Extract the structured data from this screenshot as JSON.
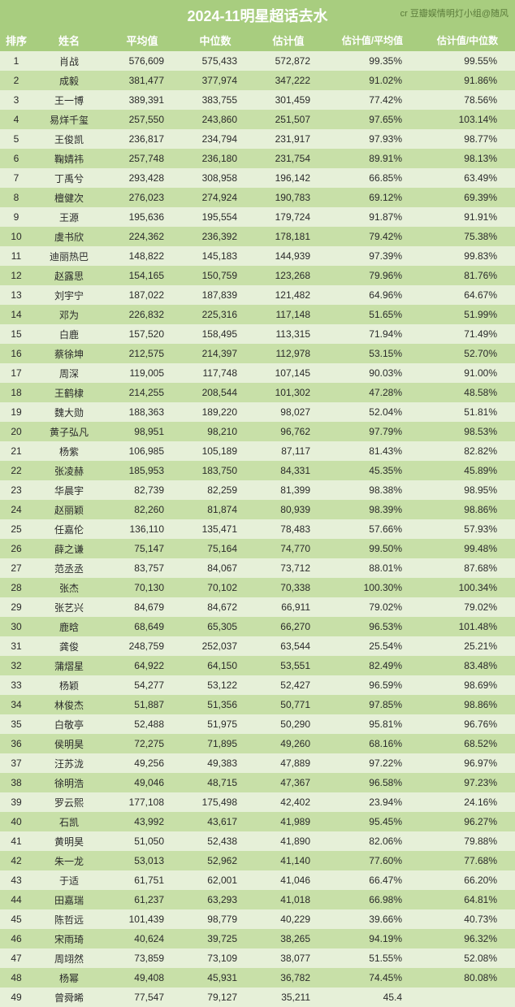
{
  "title": "2024-11明星超话去水",
  "credit": "cr 豆瓣娱情明灯小组@随风",
  "columns": [
    "排序",
    "姓名",
    "平均值",
    "中位数",
    "估计值",
    "估计值/平均值",
    "估计值/中位数"
  ],
  "rows": [
    {
      "rank": "1",
      "name": "肖战",
      "avg": "576,609",
      "med": "575,433",
      "est": "572,872",
      "r1": "99.35%",
      "r2": "99.55%"
    },
    {
      "rank": "2",
      "name": "成毅",
      "avg": "381,477",
      "med": "377,974",
      "est": "347,222",
      "r1": "91.02%",
      "r2": "91.86%"
    },
    {
      "rank": "3",
      "name": "王一博",
      "avg": "389,391",
      "med": "383,755",
      "est": "301,459",
      "r1": "77.42%",
      "r2": "78.56%"
    },
    {
      "rank": "4",
      "name": "易烊千玺",
      "avg": "257,550",
      "med": "243,860",
      "est": "251,507",
      "r1": "97.65%",
      "r2": "103.14%"
    },
    {
      "rank": "5",
      "name": "王俊凯",
      "avg": "236,817",
      "med": "234,794",
      "est": "231,917",
      "r1": "97.93%",
      "r2": "98.77%"
    },
    {
      "rank": "6",
      "name": "鞠婧祎",
      "avg": "257,748",
      "med": "236,180",
      "est": "231,754",
      "r1": "89.91%",
      "r2": "98.13%"
    },
    {
      "rank": "7",
      "name": "丁禹兮",
      "avg": "293,428",
      "med": "308,958",
      "est": "196,142",
      "r1": "66.85%",
      "r2": "63.49%"
    },
    {
      "rank": "8",
      "name": "檀健次",
      "avg": "276,023",
      "med": "274,924",
      "est": "190,783",
      "r1": "69.12%",
      "r2": "69.39%"
    },
    {
      "rank": "9",
      "name": "王源",
      "avg": "195,636",
      "med": "195,554",
      "est": "179,724",
      "r1": "91.87%",
      "r2": "91.91%"
    },
    {
      "rank": "10",
      "name": "虞书欣",
      "avg": "224,362",
      "med": "236,392",
      "est": "178,181",
      "r1": "79.42%",
      "r2": "75.38%"
    },
    {
      "rank": "11",
      "name": "迪丽热巴",
      "avg": "148,822",
      "med": "145,183",
      "est": "144,939",
      "r1": "97.39%",
      "r2": "99.83%"
    },
    {
      "rank": "12",
      "name": "赵露思",
      "avg": "154,165",
      "med": "150,759",
      "est": "123,268",
      "r1": "79.96%",
      "r2": "81.76%"
    },
    {
      "rank": "13",
      "name": "刘宇宁",
      "avg": "187,022",
      "med": "187,839",
      "est": "121,482",
      "r1": "64.96%",
      "r2": "64.67%"
    },
    {
      "rank": "14",
      "name": "邓为",
      "avg": "226,832",
      "med": "225,316",
      "est": "117,148",
      "r1": "51.65%",
      "r2": "51.99%"
    },
    {
      "rank": "15",
      "name": "白鹿",
      "avg": "157,520",
      "med": "158,495",
      "est": "113,315",
      "r1": "71.94%",
      "r2": "71.49%"
    },
    {
      "rank": "16",
      "name": "蔡徐坤",
      "avg": "212,575",
      "med": "214,397",
      "est": "112,978",
      "r1": "53.15%",
      "r2": "52.70%"
    },
    {
      "rank": "17",
      "name": "周深",
      "avg": "119,005",
      "med": "117,748",
      "est": "107,145",
      "r1": "90.03%",
      "r2": "91.00%"
    },
    {
      "rank": "18",
      "name": "王鹤棣",
      "avg": "214,255",
      "med": "208,544",
      "est": "101,302",
      "r1": "47.28%",
      "r2": "48.58%"
    },
    {
      "rank": "19",
      "name": "魏大勋",
      "avg": "188,363",
      "med": "189,220",
      "est": "98,027",
      "r1": "52.04%",
      "r2": "51.81%"
    },
    {
      "rank": "20",
      "name": "黄子弘凡",
      "avg": "98,951",
      "med": "98,210",
      "est": "96,762",
      "r1": "97.79%",
      "r2": "98.53%"
    },
    {
      "rank": "21",
      "name": "杨紫",
      "avg": "106,985",
      "med": "105,189",
      "est": "87,117",
      "r1": "81.43%",
      "r2": "82.82%"
    },
    {
      "rank": "22",
      "name": "张凌赫",
      "avg": "185,953",
      "med": "183,750",
      "est": "84,331",
      "r1": "45.35%",
      "r2": "45.89%"
    },
    {
      "rank": "23",
      "name": "华晨宇",
      "avg": "82,739",
      "med": "82,259",
      "est": "81,399",
      "r1": "98.38%",
      "r2": "98.95%"
    },
    {
      "rank": "24",
      "name": "赵丽颖",
      "avg": "82,260",
      "med": "81,874",
      "est": "80,939",
      "r1": "98.39%",
      "r2": "98.86%"
    },
    {
      "rank": "25",
      "name": "任嘉伦",
      "avg": "136,110",
      "med": "135,471",
      "est": "78,483",
      "r1": "57.66%",
      "r2": "57.93%"
    },
    {
      "rank": "26",
      "name": "薛之谦",
      "avg": "75,147",
      "med": "75,164",
      "est": "74,770",
      "r1": "99.50%",
      "r2": "99.48%"
    },
    {
      "rank": "27",
      "name": "范丞丞",
      "avg": "83,757",
      "med": "84,067",
      "est": "73,712",
      "r1": "88.01%",
      "r2": "87.68%"
    },
    {
      "rank": "28",
      "name": "张杰",
      "avg": "70,130",
      "med": "70,102",
      "est": "70,338",
      "r1": "100.30%",
      "r2": "100.34%"
    },
    {
      "rank": "29",
      "name": "张艺兴",
      "avg": "84,679",
      "med": "84,672",
      "est": "66,911",
      "r1": "79.02%",
      "r2": "79.02%"
    },
    {
      "rank": "30",
      "name": "鹿晗",
      "avg": "68,649",
      "med": "65,305",
      "est": "66,270",
      "r1": "96.53%",
      "r2": "101.48%"
    },
    {
      "rank": "31",
      "name": "龚俊",
      "avg": "248,759",
      "med": "252,037",
      "est": "63,544",
      "r1": "25.54%",
      "r2": "25.21%"
    },
    {
      "rank": "32",
      "name": "蒲熠星",
      "avg": "64,922",
      "med": "64,150",
      "est": "53,551",
      "r1": "82.49%",
      "r2": "83.48%"
    },
    {
      "rank": "33",
      "name": "杨颖",
      "avg": "54,277",
      "med": "53,122",
      "est": "52,427",
      "r1": "96.59%",
      "r2": "98.69%"
    },
    {
      "rank": "34",
      "name": "林俊杰",
      "avg": "51,887",
      "med": "51,356",
      "est": "50,771",
      "r1": "97.85%",
      "r2": "98.86%"
    },
    {
      "rank": "35",
      "name": "白敬亭",
      "avg": "52,488",
      "med": "51,975",
      "est": "50,290",
      "r1": "95.81%",
      "r2": "96.76%"
    },
    {
      "rank": "36",
      "name": "侯明昊",
      "avg": "72,275",
      "med": "71,895",
      "est": "49,260",
      "r1": "68.16%",
      "r2": "68.52%"
    },
    {
      "rank": "37",
      "name": "汪苏泷",
      "avg": "49,256",
      "med": "49,383",
      "est": "47,889",
      "r1": "97.22%",
      "r2": "96.97%"
    },
    {
      "rank": "38",
      "name": "徐明浩",
      "avg": "49,046",
      "med": "48,715",
      "est": "47,367",
      "r1": "96.58%",
      "r2": "97.23%"
    },
    {
      "rank": "39",
      "name": "罗云熙",
      "avg": "177,108",
      "med": "175,498",
      "est": "42,402",
      "r1": "23.94%",
      "r2": "24.16%"
    },
    {
      "rank": "40",
      "name": "石凯",
      "avg": "43,992",
      "med": "43,617",
      "est": "41,989",
      "r1": "95.45%",
      "r2": "96.27%"
    },
    {
      "rank": "41",
      "name": "黄明昊",
      "avg": "51,050",
      "med": "52,438",
      "est": "41,890",
      "r1": "82.06%",
      "r2": "79.88%"
    },
    {
      "rank": "42",
      "name": "朱一龙",
      "avg": "53,013",
      "med": "52,962",
      "est": "41,140",
      "r1": "77.60%",
      "r2": "77.68%"
    },
    {
      "rank": "43",
      "name": "于适",
      "avg": "61,751",
      "med": "62,001",
      "est": "41,046",
      "r1": "66.47%",
      "r2": "66.20%"
    },
    {
      "rank": "44",
      "name": "田嘉瑞",
      "avg": "61,237",
      "med": "63,293",
      "est": "41,018",
      "r1": "66.98%",
      "r2": "64.81%"
    },
    {
      "rank": "45",
      "name": "陈哲远",
      "avg": "101,439",
      "med": "98,779",
      "est": "40,229",
      "r1": "39.66%",
      "r2": "40.73%"
    },
    {
      "rank": "46",
      "name": "宋雨琦",
      "avg": "40,624",
      "med": "39,725",
      "est": "38,265",
      "r1": "94.19%",
      "r2": "96.32%"
    },
    {
      "rank": "47",
      "name": "周翊然",
      "avg": "73,859",
      "med": "73,109",
      "est": "38,077",
      "r1": "51.55%",
      "r2": "52.08%"
    },
    {
      "rank": "48",
      "name": "杨幂",
      "avg": "49,408",
      "med": "45,931",
      "est": "36,782",
      "r1": "74.45%",
      "r2": "80.08%"
    },
    {
      "rank": "49",
      "name": "曾舜晞",
      "avg": "77,547",
      "med": "79,127",
      "est": "35,211",
      "r1": "45.4",
      "r2": ""
    }
  ]
}
